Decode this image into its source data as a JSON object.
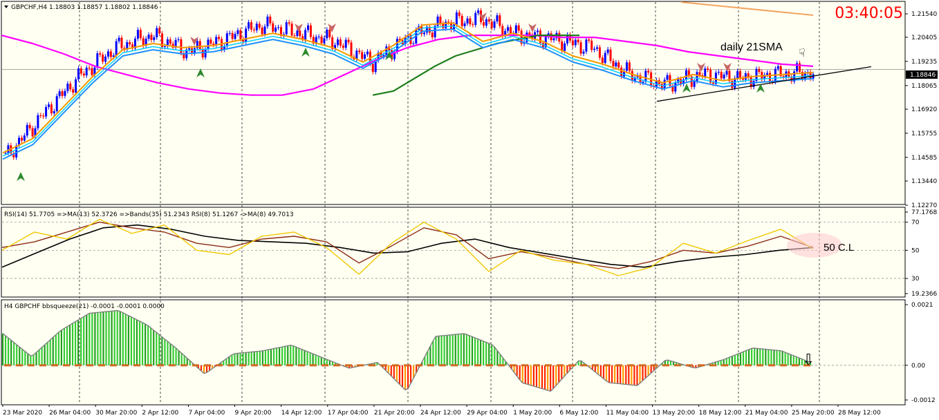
{
  "clock": "03:40:05",
  "chart_data": [
    {
      "type": "candlestick",
      "header": "GBPCHF,H4  1.18803 1.18857 1.18802 1.18846",
      "current_price": "1.18846",
      "y_ticks": [
        "1.21540",
        "1.20405",
        "1.19235",
        "1.18065",
        "1.16920",
        "1.15755",
        "1.14585",
        "1.13440",
        "1.12270"
      ],
      "x_ticks": [
        "23 Mar 2020",
        "26 Mar 04:00",
        "30 Mar 20:00",
        "2 Apr 12:00",
        "7 Apr 04:00",
        "9 Apr 20:00",
        "14 Apr 12:00",
        "17 Apr 04:00",
        "21 Apr 20:00",
        "24 Apr 12:00",
        "29 Apr 04:00",
        "1 May 20:00",
        "6 May 12:00",
        "11 May 04:00",
        "13 May 20:00",
        "18 May 12:00",
        "21 May 04:00",
        "25 May 20:00",
        "28 May 12:00"
      ],
      "annotation": "daily 21SMA",
      "series": [
        {
          "name": "",
          "color": "#ff00ff",
          "values": [
            1.205,
            1.201,
            1.196,
            1.19,
            1.186,
            1.182,
            1.179,
            1.177,
            1.176,
            1.176,
            1.179,
            1.186,
            1.193,
            1.199,
            1.203,
            1.205,
            1.205,
            1.205,
            1.204,
            1.204,
            1.202,
            1.2,
            1.197,
            1.195,
            1.193,
            1.191,
            1.19
          ]
        },
        {
          "name": "",
          "color": "#1a7d1a",
          "values": [
            null,
            null,
            null,
            null,
            null,
            null,
            null,
            null,
            1.176,
            1.178,
            1.184,
            1.19,
            1.195,
            1.198,
            1.201,
            1.203,
            1.205,
            1.205,
            1.205
          ]
        },
        {
          "name": "",
          "color": "#f39a00",
          "values": [
            1.148,
            1.155,
            1.17,
            1.185,
            1.198,
            1.201,
            1.199,
            1.2,
            1.203,
            1.206,
            1.203,
            1.199,
            1.192,
            1.2,
            1.21,
            1.211,
            1.202,
            1.206,
            1.202,
            1.195,
            1.191,
            1.186,
            1.182,
            1.186,
            1.183,
            1.185,
            1.186,
            1.187
          ]
        }
      ]
    },
    {
      "type": "line",
      "header": "RSI(14) 51.7705  =>MA(13) 52.3726  =>Bands(35) 51.2343  RSI(8) 51.1267  ->MA(8) 49.7013",
      "y_ticks": [
        "77.1768",
        "70",
        "50",
        "30",
        "19.2366"
      ],
      "annotation": "50 C.L",
      "series": [
        {
          "name": "",
          "color": "#f0c800",
          "values": [
            50,
            63,
            58,
            72,
            62,
            68,
            50,
            47,
            60,
            63,
            52,
            33,
            55,
            70,
            58,
            35,
            50,
            43,
            40,
            32,
            38,
            55,
            48,
            57,
            65,
            51
          ]
        },
        {
          "name": "",
          "color": "#8b2a12",
          "values": [
            52,
            56,
            63,
            70,
            66,
            63,
            55,
            52,
            58,
            60,
            56,
            41,
            53,
            66,
            61,
            44,
            49,
            45,
            40,
            37,
            42,
            50,
            48,
            53,
            60,
            52
          ]
        },
        {
          "name": "",
          "color": "#000000",
          "values": [
            38,
            48,
            58,
            66,
            68,
            65,
            60,
            57,
            56,
            55,
            52,
            48,
            49,
            55,
            58,
            52,
            48,
            44,
            40,
            38,
            42,
            45,
            47,
            50,
            52
          ]
        }
      ]
    },
    {
      "type": "histogram",
      "header": "H4 GBPCHF bbsqueeze(21) -0.0001 -0.0001 0.0000",
      "y_ticks": [
        "0.0021",
        "0.00",
        "-0.0012"
      ],
      "values": [
        0.0011,
        0.0003,
        0.0012,
        0.0018,
        0.0019,
        0.0014,
        0.0006,
        -0.0003,
        0.0004,
        0.0005,
        0.0007,
        0.0003,
        -0.0001,
        0.0001,
        -0.0009,
        0.001,
        0.0011,
        0.0007,
        -0.0006,
        -0.0009,
        0.0002,
        -0.0006,
        -0.0007,
        0.0002,
        -0.0001,
        0.0002,
        0.0006,
        0.0005,
        0.0001
      ]
    }
  ]
}
